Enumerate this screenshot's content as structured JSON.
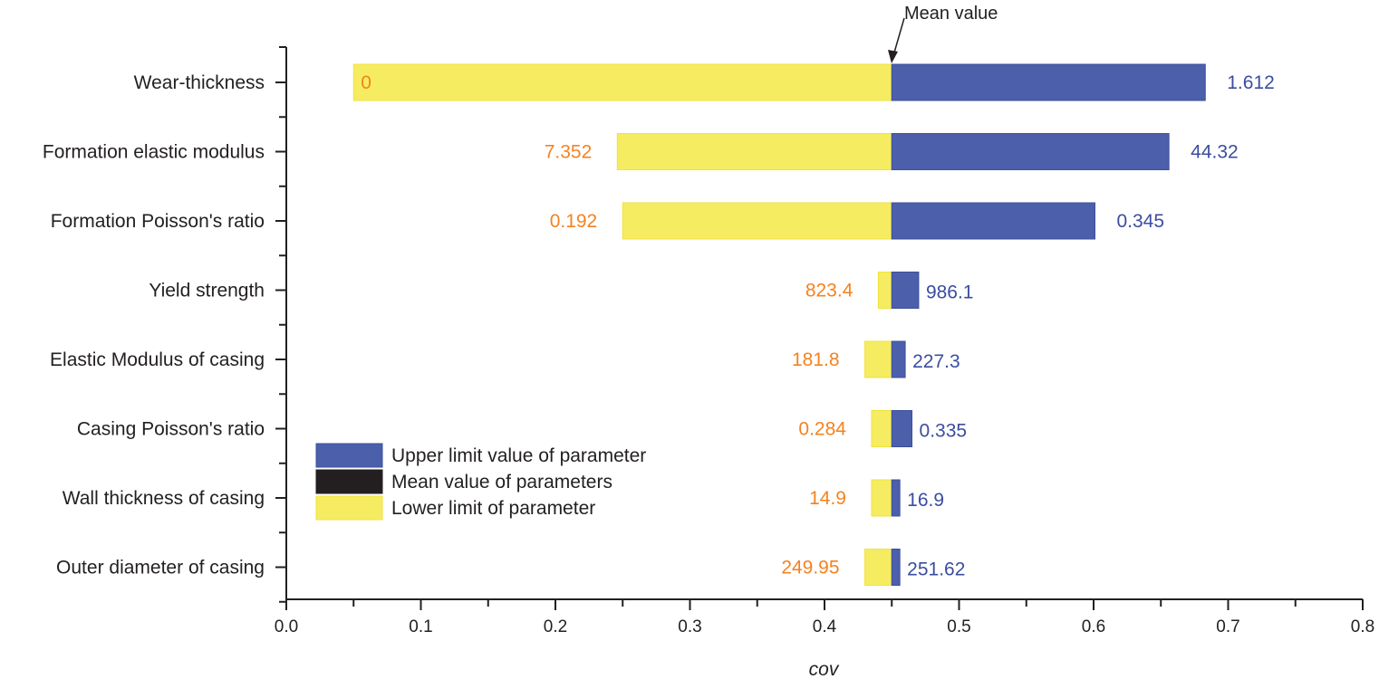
{
  "chart_data": {
    "type": "bar",
    "orientation": "horizontal-tornado",
    "xlabel": "cov",
    "xlim": [
      0.0,
      0.8
    ],
    "xticks": [
      "0.0",
      "0.1",
      "0.2",
      "0.3",
      "0.4",
      "0.5",
      "0.6",
      "0.7",
      "0.8"
    ],
    "mean_cov": 0.45,
    "annotation": "Mean value",
    "categories": [
      "Wear-thickness",
      "Formation elastic modulus",
      "Formation Poisson's ratio",
      "Yield strength",
      "Elastic Modulus of casing",
      "Casing Poisson's ratio",
      "Wall thickness of casing",
      "Outer diameter of casing"
    ],
    "series": [
      {
        "name": "Upper limit value of parameter",
        "color": "#4b5fab",
        "cov": [
          0.683,
          0.656,
          0.601,
          0.47,
          0.46,
          0.465,
          0.456,
          0.456
        ],
        "labels": [
          "1.612",
          "44.32",
          "0.345",
          "986.1",
          "227.3",
          "0.335",
          "16.9",
          "251.62"
        ]
      },
      {
        "name": "Mean value of parameters",
        "color": "#231f20"
      },
      {
        "name": "Lower limit of parameter",
        "color": "#f6ec62",
        "cov": [
          0.05,
          0.246,
          0.25,
          0.44,
          0.43,
          0.435,
          0.435,
          0.43
        ],
        "labels": [
          "0",
          "7.352",
          "0.192",
          "823.4",
          "181.8",
          "0.284",
          "14.9",
          "249.95"
        ]
      }
    ],
    "label_colors": {
      "upper": "#3b4da0",
      "lower": "#f58220"
    },
    "legend_position": "lower-left",
    "grid": false
  }
}
